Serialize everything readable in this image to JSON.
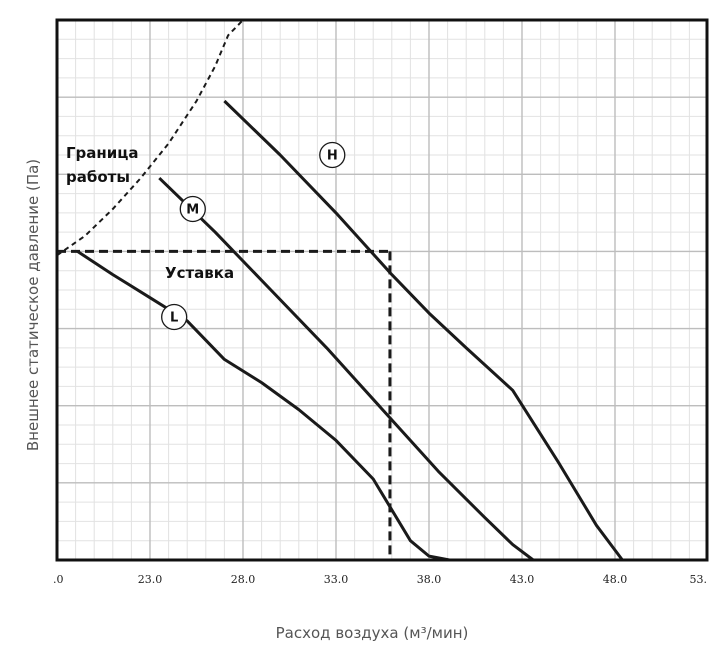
{
  "chart_data": {
    "type": "line",
    "xlabel": "Расход воздуха (м³/мин)",
    "ylabel": "Внешнее статическое давление (Па)",
    "x_ticks": [
      ".0",
      "23.0",
      "28.0",
      "33.0",
      "38.0",
      "43.0",
      "48.0",
      "53."
    ],
    "xlim": [
      18.0,
      53.0
    ],
    "ylim": [
      0,
      7
    ],
    "grid": true,
    "series": [
      {
        "name": "H",
        "x": [
          27.0,
          30.0,
          33.0,
          36.0,
          38.0,
          40.0,
          42.5,
          45.0,
          47.0,
          48.4
        ],
        "y": [
          5.95,
          5.25,
          4.5,
          3.7,
          3.2,
          2.75,
          2.2,
          1.25,
          0.45,
          0.0
        ]
      },
      {
        "name": "M",
        "x": [
          23.5,
          26.5,
          29.5,
          32.5,
          35.5,
          38.5,
          41.0,
          42.5,
          43.6
        ],
        "y": [
          4.95,
          4.25,
          3.5,
          2.75,
          1.95,
          1.15,
          0.55,
          0.2,
          0.0
        ]
      },
      {
        "name": "L",
        "x": [
          19.1,
          21.0,
          23.0,
          25.0,
          27.0,
          29.0,
          31.0,
          33.0,
          35.0,
          37.0,
          38.0,
          39.1
        ],
        "y": [
          4.0,
          3.7,
          3.4,
          3.1,
          2.6,
          2.3,
          1.95,
          1.55,
          1.05,
          0.25,
          0.05,
          0.0
        ]
      }
    ],
    "operating_boundary": {
      "label": "Граница\nработы",
      "x": [
        18.0,
        19.5,
        21.0,
        22.5,
        24.0,
        25.5,
        26.5,
        27.2,
        28.0
      ],
      "y": [
        3.95,
        4.2,
        4.55,
        4.95,
        5.4,
        5.95,
        6.4,
        6.8,
        7.0
      ]
    },
    "setpoint": {
      "label": "Уставка",
      "x": 35.9,
      "y": 4.0
    },
    "annotations": {
      "boundary_line1": "Граница",
      "boundary_line2": "работы",
      "setpoint_label": "Уставка",
      "H": "H",
      "M": "M",
      "L": "L"
    },
    "colors": {
      "curve": "#1a1a1a",
      "grid_major": "#bdbdbd",
      "grid_minor": "#e2e2e2",
      "frame": "#111111"
    }
  }
}
